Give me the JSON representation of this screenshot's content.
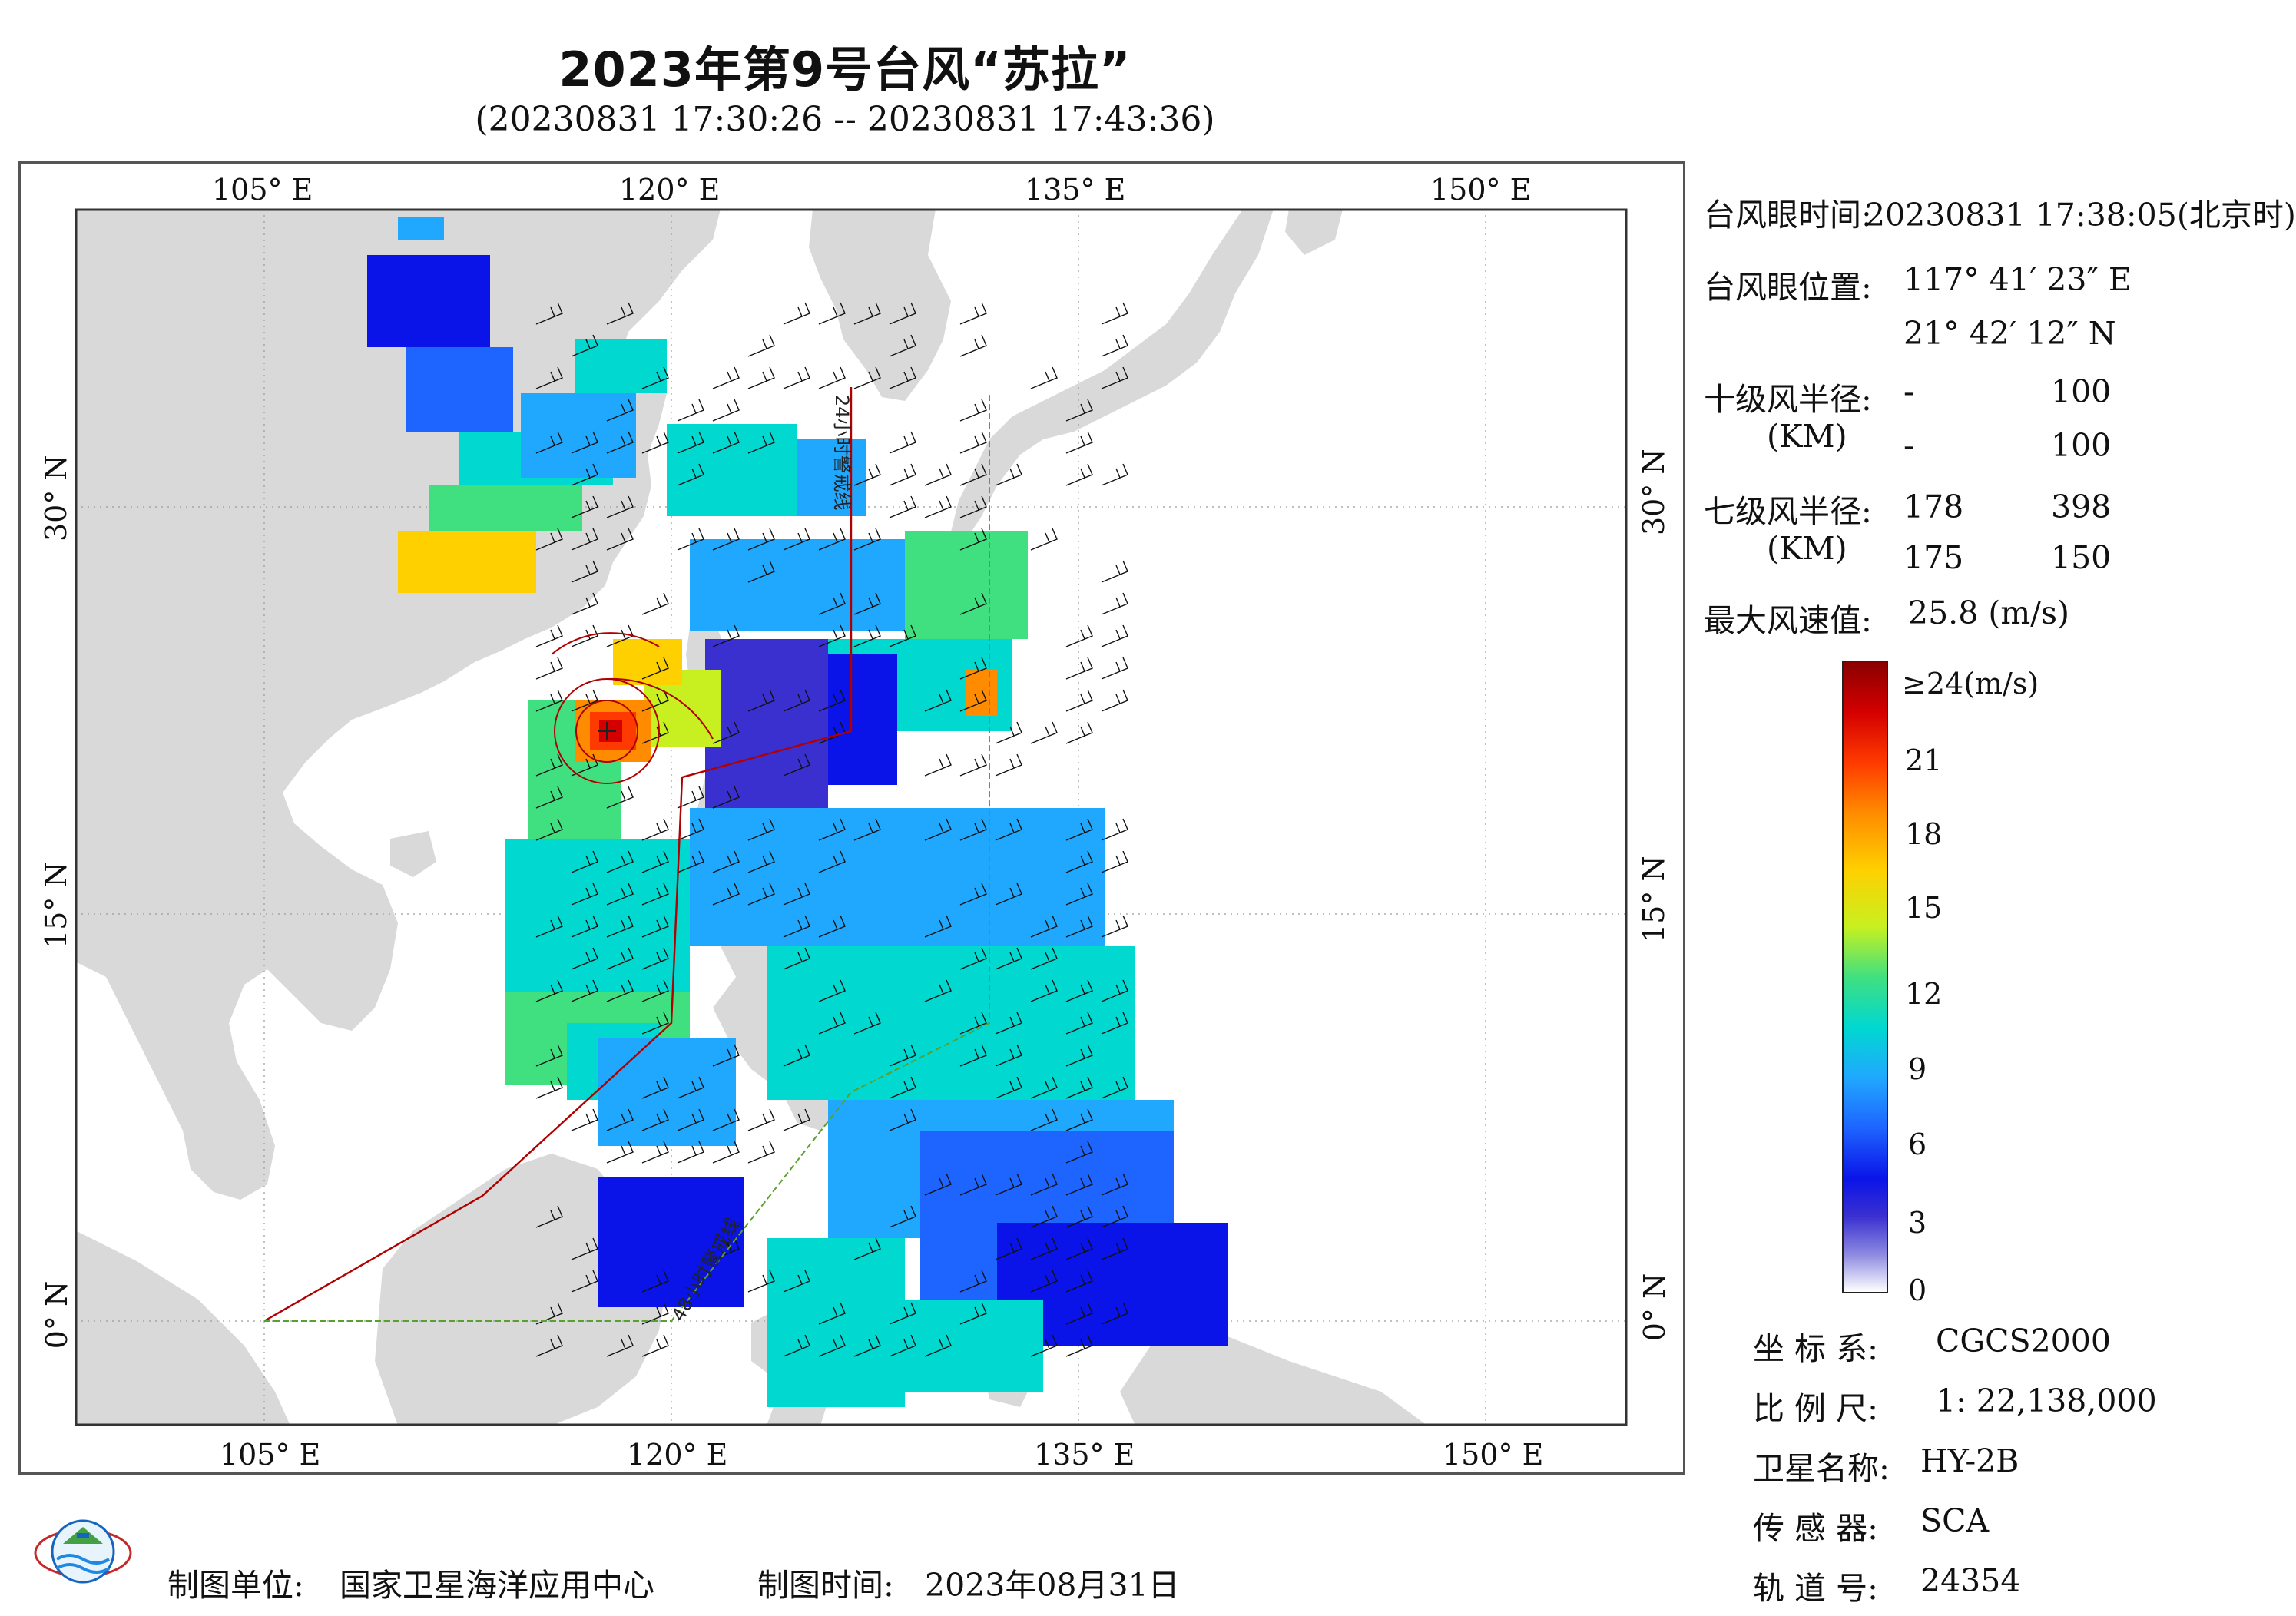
{
  "title": "2023年第9号台风“苏拉”",
  "subtitle": "(20230831 17:30:26 -- 20230831 17:43:36)",
  "map": {
    "lon_labels": [
      "105° E",
      "120° E",
      "135° E",
      "150° E"
    ],
    "lat_labels": [
      "30° N",
      "15° N",
      "0° N"
    ],
    "lon_range": [
      98,
      155
    ],
    "lat_range": [
      -4,
      41
    ],
    "track_label_24h": "24小时警戒线",
    "track_label_48h": "48小时警戒线",
    "colors": {
      "land": "#d9d9d9",
      "sea": "#ffffff",
      "warn24": "#b00000",
      "warn48": "#5aa02c"
    }
  },
  "info": {
    "eye_time_label": "台风眼时间:",
    "eye_time_value": "20230831 17:38:05(北京时)",
    "eye_pos_label": "台风眼位置:",
    "eye_lon": "117° 41′ 23″ E",
    "eye_lat": "21° 42′ 12″ N",
    "r10_label": "十级风半径:",
    "r10_unit": "(KM)",
    "r10_row1": [
      "-",
      "100"
    ],
    "r10_row2": [
      "-",
      "100"
    ],
    "r7_label": "七级风半径:",
    "r7_unit": "(KM)",
    "r7_row1": [
      "178",
      "398"
    ],
    "r7_row2": [
      "175",
      "150"
    ],
    "max_label": "最大风速值:",
    "max_value": "25.8 (m/s)"
  },
  "legend": {
    "title": "≥24(m/s)",
    "ticks": [
      "21",
      "18",
      "15",
      "12",
      "9",
      "6",
      "3",
      "0"
    ],
    "range": [
      0,
      24
    ]
  },
  "meta": {
    "crs_label": "坐 标 系:",
    "crs_value": "CGCS2000",
    "scale_label": "比 例 尺:",
    "scale_value": "1: 22,138,000",
    "sat_label": "卫星名称:",
    "sat_value": "HY-2B",
    "sensor_label": "传 感 器:",
    "sensor_value": "SCA",
    "orbit_label": "轨 道 号:",
    "orbit_value": "24354"
  },
  "footer": {
    "unit_label": "制图单位:",
    "unit_value": "国家卫星海洋应用中心",
    "time_label": "制图时间:",
    "time_value": "2023年08月31日"
  }
}
